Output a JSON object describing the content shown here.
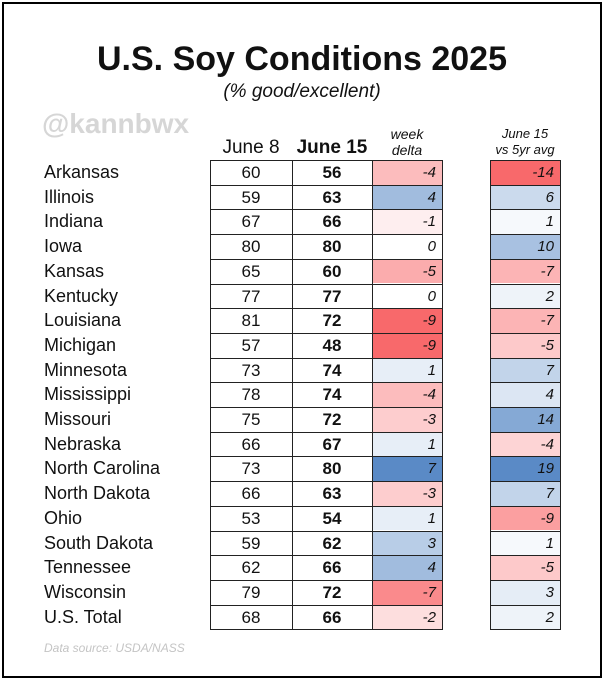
{
  "chart_data": {
    "type": "table",
    "title": "U.S. Soy Conditions 2025",
    "subtitle": "(% good/excellent)",
    "watermark": "@kannbwx",
    "source": "Data source: USDA/NASS",
    "columns": {
      "june8": "June 8",
      "june15": "June 15",
      "delta_line1": "week",
      "delta_line2": "delta",
      "vs5yr_line1": "June 15",
      "vs5yr_line2": "vs 5yr avg"
    },
    "rows": [
      {
        "state": "Arkansas",
        "june8": "60",
        "june15": "56",
        "delta": "-4",
        "vs5yr": "-14"
      },
      {
        "state": "Illinois",
        "june8": "59",
        "june15": "63",
        "delta": "4",
        "vs5yr": "6"
      },
      {
        "state": "Indiana",
        "june8": "67",
        "june15": "66",
        "delta": "-1",
        "vs5yr": "1"
      },
      {
        "state": "Iowa",
        "june8": "80",
        "june15": "80",
        "delta": "0",
        "vs5yr": "10"
      },
      {
        "state": "Kansas",
        "june8": "65",
        "june15": "60",
        "delta": "-5",
        "vs5yr": "-7"
      },
      {
        "state": "Kentucky",
        "june8": "77",
        "june15": "77",
        "delta": "0",
        "vs5yr": "2"
      },
      {
        "state": "Louisiana",
        "june8": "81",
        "june15": "72",
        "delta": "-9",
        "vs5yr": "-7"
      },
      {
        "state": "Michigan",
        "june8": "57",
        "june15": "48",
        "delta": "-9",
        "vs5yr": "-5"
      },
      {
        "state": "Minnesota",
        "june8": "73",
        "june15": "74",
        "delta": "1",
        "vs5yr": "7"
      },
      {
        "state": "Mississippi",
        "june8": "78",
        "june15": "74",
        "delta": "-4",
        "vs5yr": "4"
      },
      {
        "state": "Missouri",
        "june8": "75",
        "june15": "72",
        "delta": "-3",
        "vs5yr": "14"
      },
      {
        "state": "Nebraska",
        "june8": "66",
        "june15": "67",
        "delta": "1",
        "vs5yr": "-4"
      },
      {
        "state": "North Carolina",
        "june8": "73",
        "june15": "80",
        "delta": "7",
        "vs5yr": "19"
      },
      {
        "state": "North Dakota",
        "june8": "66",
        "june15": "63",
        "delta": "-3",
        "vs5yr": "7"
      },
      {
        "state": "Ohio",
        "june8": "53",
        "june15": "54",
        "delta": "1",
        "vs5yr": "-9"
      },
      {
        "state": "South Dakota",
        "june8": "59",
        "june15": "62",
        "delta": "3",
        "vs5yr": "1"
      },
      {
        "state": "Tennessee",
        "june8": "62",
        "june15": "66",
        "delta": "4",
        "vs5yr": "-5"
      },
      {
        "state": "Wisconsin",
        "june8": "79",
        "june15": "72",
        "delta": "-7",
        "vs5yr": "3"
      },
      {
        "state": "U.S. Total",
        "june8": "68",
        "june15": "66",
        "delta": "-2",
        "vs5yr": "2"
      }
    ],
    "colors": {
      "negative": "#f8696b",
      "positive": "#5a8ac6",
      "neutral": "#ffffff"
    }
  }
}
